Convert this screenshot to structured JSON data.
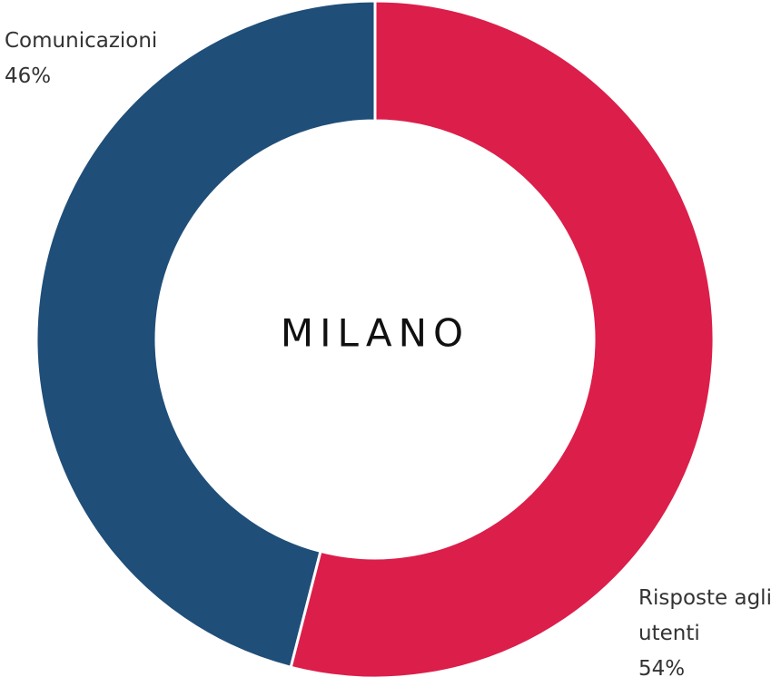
{
  "chart_data": {
    "type": "donut",
    "center_label": "MILANO",
    "categories": [
      "Risposte agli utenti",
      "Comunicazioni"
    ],
    "values": [
      54,
      46
    ],
    "value_labels": [
      "54%",
      "46%"
    ],
    "colors": [
      "#dc1e4a",
      "#1f4e79"
    ]
  }
}
